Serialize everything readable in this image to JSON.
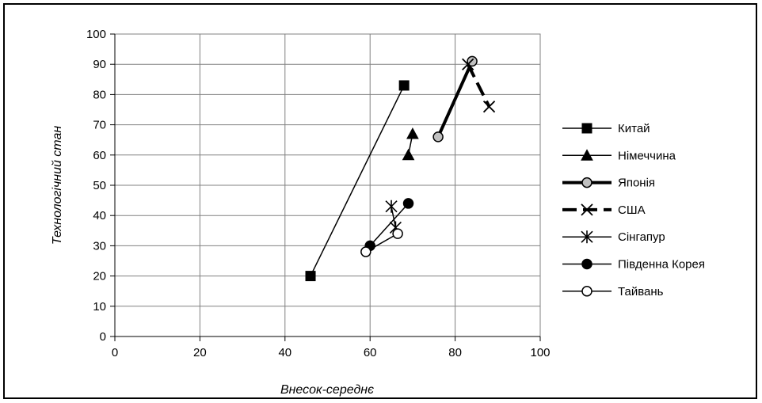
{
  "chart_data": {
    "type": "line",
    "title": "",
    "xlabel": "Внесок-середнє",
    "ylabel": "Технологічний стан",
    "xlim": [
      0,
      100
    ],
    "ylim": [
      0,
      100
    ],
    "xticks": [
      0,
      20,
      40,
      60,
      80,
      100
    ],
    "yticks": [
      0,
      10,
      20,
      30,
      40,
      50,
      60,
      70,
      80,
      90,
      100
    ],
    "grid": true,
    "legend_position": "right",
    "series": [
      {
        "name": "Китай",
        "marker": "square",
        "fill": "#000000",
        "line_width": 1.5,
        "dash": "",
        "points": [
          [
            46,
            20
          ],
          [
            68,
            83
          ]
        ]
      },
      {
        "name": "Німеччина",
        "marker": "triangle",
        "fill": "#000000",
        "line_width": 1.5,
        "dash": "",
        "points": [
          [
            69,
            60
          ],
          [
            70,
            67
          ]
        ]
      },
      {
        "name": "Японія",
        "marker": "circle",
        "fill": "#c0c0c0",
        "line_width": 4,
        "dash": "",
        "points": [
          [
            76,
            66
          ],
          [
            84,
            91
          ]
        ]
      },
      {
        "name": "США",
        "marker": "x",
        "fill": "#000000",
        "line_width": 4,
        "dash": "18,8",
        "points": [
          [
            83,
            90
          ],
          [
            88,
            76
          ]
        ]
      },
      {
        "name": "Сінгапур",
        "marker": "star",
        "fill": "#000000",
        "line_width": 1.5,
        "dash": "",
        "points": [
          [
            65,
            43
          ],
          [
            66,
            36
          ]
        ]
      },
      {
        "name": "Південна Корея",
        "marker": "circle",
        "fill": "#000000",
        "line_width": 1.5,
        "dash": "",
        "points": [
          [
            60,
            30
          ],
          [
            69,
            44
          ]
        ]
      },
      {
        "name": "Тайвань",
        "marker": "circle",
        "fill": "#ffffff",
        "line_width": 1.5,
        "dash": "",
        "points": [
          [
            59,
            28
          ],
          [
            66.5,
            34
          ]
        ]
      }
    ]
  }
}
